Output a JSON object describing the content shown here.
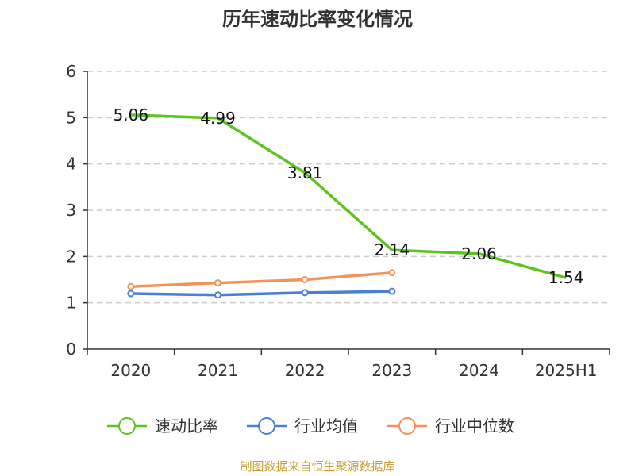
{
  "chart_data": {
    "type": "line",
    "title": "历年速动比率变化情况",
    "categories": [
      "2020",
      "2021",
      "2022",
      "2023",
      "2024",
      "2025H1"
    ],
    "ylim": [
      0,
      6
    ],
    "yticks": [
      "0",
      "1",
      "2",
      "3",
      "4",
      "5",
      "6"
    ],
    "grid": true,
    "legend_position": "bottom",
    "series": [
      {
        "name": "速动比率",
        "color": "#5cc41e",
        "values": [
          5.06,
          4.99,
          3.81,
          2.14,
          2.06,
          1.54
        ],
        "labels": [
          "5.06",
          "4.99",
          "3.81",
          "2.14",
          "2.06",
          "1.54"
        ]
      },
      {
        "name": "行业均值",
        "color": "#4a7fd8",
        "values": [
          1.2,
          1.17,
          1.22,
          1.25,
          null,
          null
        ]
      },
      {
        "name": "行业中位数",
        "color": "#f5925a",
        "values": [
          1.35,
          1.43,
          1.5,
          1.65,
          null,
          null
        ]
      }
    ]
  },
  "source": "制图数据来自恒生聚源数据库"
}
